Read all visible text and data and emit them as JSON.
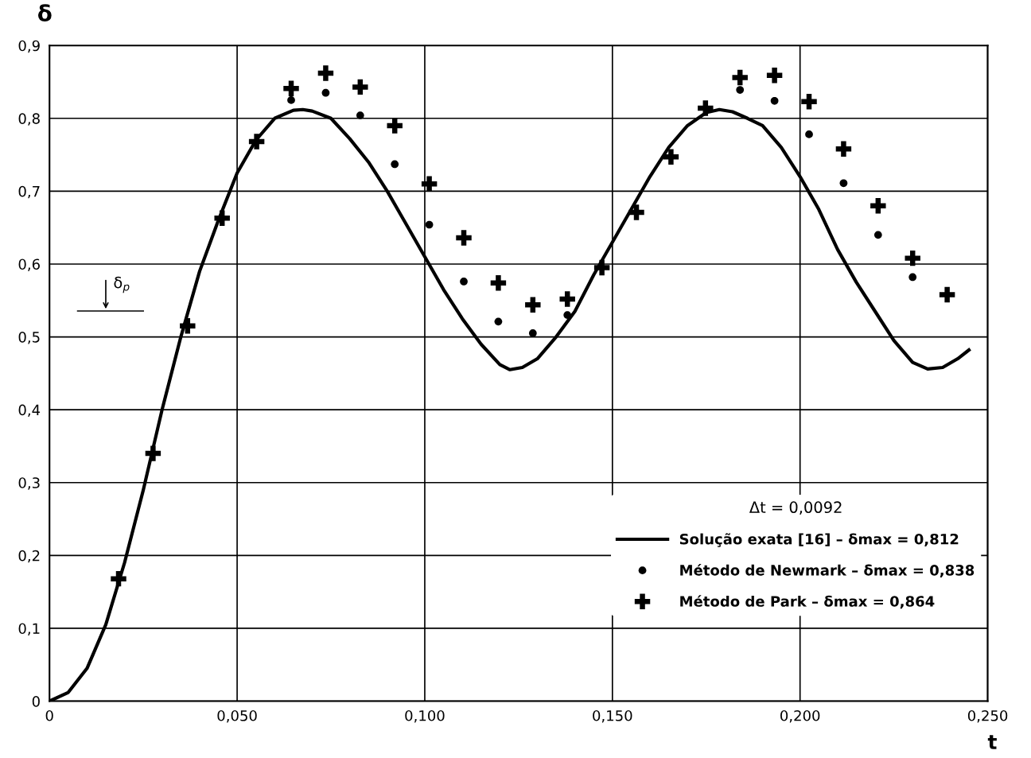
{
  "chart_data": {
    "type": "line",
    "xlabel": "t",
    "ylabel": "δ",
    "legend_title": "Δt = 0,0092",
    "xlim": [
      0,
      0.25
    ],
    "ylim": [
      0,
      0.9
    ],
    "xticks": [
      0,
      {
        "value": 0.05,
        "label": "0,050"
      },
      {
        "value": 0.1,
        "label": "0,100"
      },
      {
        "value": 0.15,
        "label": "0,150"
      },
      {
        "value": 0.2,
        "label": "0,200"
      },
      {
        "value": 0.25,
        "label": "0,250"
      }
    ],
    "yticks": [
      0,
      {
        "value": 0.1,
        "label": "0,1"
      },
      {
        "value": 0.2,
        "label": "0,2"
      },
      {
        "value": 0.3,
        "label": "0,3"
      },
      {
        "value": 0.4,
        "label": "0,4"
      },
      {
        "value": 0.5,
        "label": "0,5"
      },
      {
        "value": 0.6,
        "label": "0,6"
      },
      {
        "value": 0.7,
        "label": "0,7"
      },
      {
        "value": 0.8,
        "label": "0,8"
      },
      {
        "value": 0.9,
        "label": "0,9"
      }
    ],
    "grid": true,
    "legend": "bottom right",
    "annotations": [
      "δ$_{p}$"
    ],
    "series": [
      {
        "name": "Solução exata [16] – δmax = 0,812",
        "color": "#000000",
        "marker": "none",
        "line_style": "solid",
        "x": [
          0,
          0.005,
          0.01,
          0.015,
          0.02,
          0.025,
          0.03,
          0.035,
          0.04,
          0.045,
          0.05,
          0.055,
          0.06,
          0.065,
          0.0675,
          0.07,
          0.075,
          0.08,
          0.085,
          0.09,
          0.095,
          0.1,
          0.105,
          0.11,
          0.115,
          0.12,
          0.1227,
          0.126,
          0.13,
          0.135,
          0.14,
          0.145,
          0.15,
          0.155,
          0.16,
          0.165,
          0.17,
          0.175,
          0.1785,
          0.182,
          0.186,
          0.19,
          0.195,
          0.2,
          0.205,
          0.21,
          0.215,
          0.22,
          0.225,
          0.23,
          0.234,
          0.238,
          0.242,
          0.245
        ],
        "values": [
          0,
          0.012,
          0.045,
          0.105,
          0.19,
          0.29,
          0.4,
          0.5,
          0.59,
          0.66,
          0.725,
          0.77,
          0.8,
          0.811,
          0.812,
          0.81,
          0.8,
          0.772,
          0.74,
          0.7,
          0.655,
          0.61,
          0.565,
          0.525,
          0.49,
          0.462,
          0.455,
          0.458,
          0.47,
          0.5,
          0.535,
          0.585,
          0.63,
          0.675,
          0.72,
          0.76,
          0.79,
          0.808,
          0.812,
          0.809,
          0.8,
          0.79,
          0.76,
          0.72,
          0.675,
          0.62,
          0.575,
          0.535,
          0.495,
          0.465,
          0.456,
          0.458,
          0.47,
          0.482
        ]
      },
      {
        "name": "Método de Newmark – δmax = 0,838",
        "type": "scatter",
        "color": "#000000",
        "marker": "circle",
        "x": [
          0.0644,
          0.0736,
          0.0828,
          0.092,
          0.1012,
          0.1104,
          0.1196,
          0.1288,
          0.138,
          0.1472,
          0.1564,
          0.1656,
          0.1748,
          0.184,
          0.1932,
          0.2024,
          0.2116,
          0.2208,
          0.23
        ],
        "values": [
          0.825,
          0.835,
          0.804,
          0.737,
          0.654,
          0.576,
          0.521,
          0.505,
          0.53,
          null,
          null,
          null,
          null,
          0.839,
          0.824,
          0.778,
          0.711,
          0.64,
          0.582
        ]
      },
      {
        "name": "Método de Park – δmax = 0,864",
        "type": "scatter",
        "color": "#000000",
        "marker": "cross",
        "x": [
          0.0184,
          0.0276,
          0.0368,
          0.046,
          0.0552,
          0.0644,
          0.0736,
          0.0828,
          0.092,
          0.1012,
          0.1104,
          0.1196,
          0.1288,
          0.138,
          0.1472,
          0.1564,
          0.1656,
          0.1748,
          0.184,
          0.1932,
          0.2024,
          0.2116,
          0.2208,
          0.23,
          0.2392
        ],
        "values": [
          0.168,
          0.34,
          0.515,
          0.663,
          0.768,
          0.841,
          0.862,
          0.843,
          0.79,
          0.71,
          0.636,
          0.574,
          0.544,
          0.552,
          0.595,
          0.671,
          0.747,
          0.814,
          0.856,
          0.859,
          0.823,
          0.758,
          0.68,
          0.608,
          0.558
        ]
      }
    ]
  }
}
